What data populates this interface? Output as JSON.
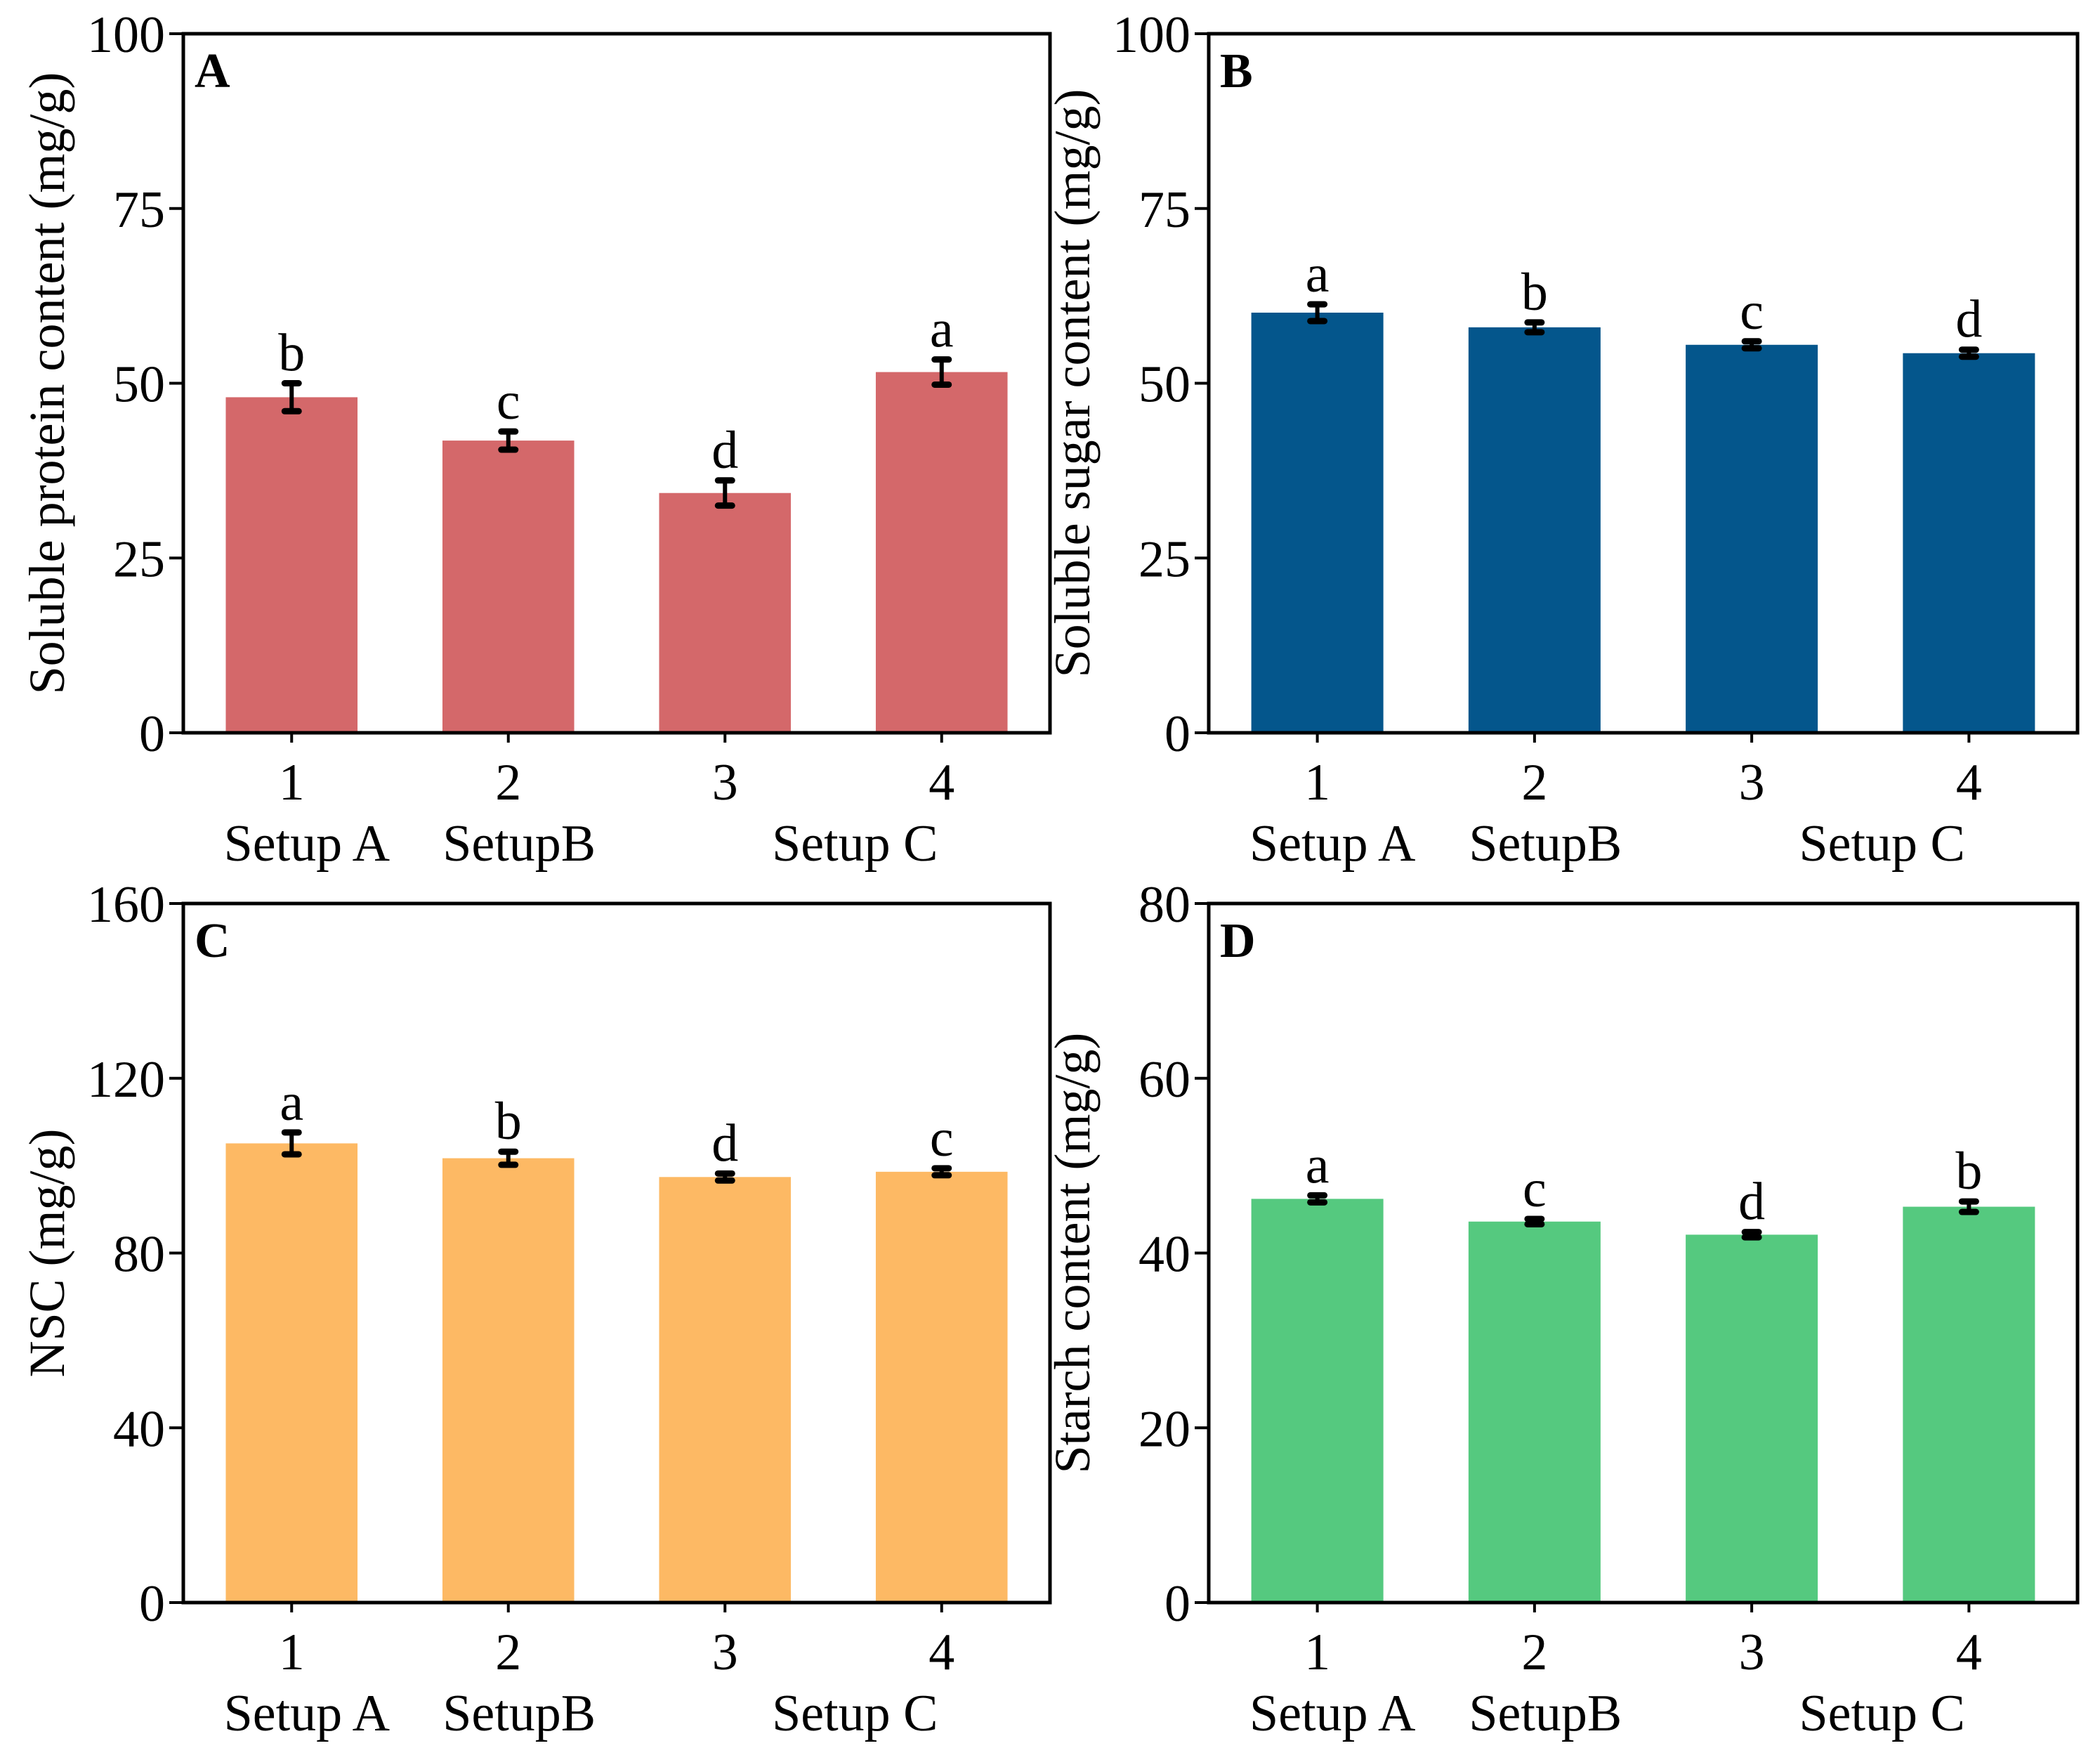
{
  "chart_data": [
    {
      "type": "bar",
      "panel_label": "A",
      "ylabel": "Soluble protein content (mg/g)",
      "xlabel": "",
      "categories": [
        "1",
        "2",
        "3",
        "4"
      ],
      "values": [
        48.0,
        41.8,
        34.3,
        51.6
      ],
      "errors": [
        2.0,
        1.3,
        1.8,
        1.8
      ],
      "significance": [
        "b",
        "c",
        "d",
        "a"
      ],
      "ylim": [
        0,
        100
      ],
      "yticks": [
        0,
        25,
        50,
        75,
        100
      ],
      "color": "#d4686a",
      "groups": [
        "Setup A",
        "SetupB",
        "Setup C"
      ]
    },
    {
      "type": "bar",
      "panel_label": "B",
      "ylabel": "Soluble sugar content (mg/g)",
      "xlabel": "",
      "categories": [
        "1",
        "2",
        "3",
        "4"
      ],
      "values": [
        60.1,
        58.0,
        55.5,
        54.3
      ],
      "errors": [
        1.2,
        0.7,
        0.5,
        0.5
      ],
      "significance": [
        "a",
        "b",
        "c",
        "d"
      ],
      "ylim": [
        0,
        100
      ],
      "yticks": [
        0,
        25,
        50,
        75,
        100
      ],
      "color": "#04568c",
      "groups": [
        "Setup A",
        "SetupB",
        "Setup C"
      ]
    },
    {
      "type": "bar",
      "panel_label": "C",
      "ylabel": "NSC (mg/g)",
      "xlabel": "",
      "categories": [
        "1",
        "2",
        "3",
        "4"
      ],
      "values": [
        105.1,
        101.7,
        97.4,
        98.6
      ],
      "errors": [
        2.5,
        1.5,
        0.8,
        0.8
      ],
      "significance": [
        "a",
        "b",
        "d",
        "c"
      ],
      "ylim": [
        0,
        160
      ],
      "yticks": [
        0,
        40,
        80,
        120,
        160
      ],
      "color": "#fdb964",
      "groups": [
        "Setup A",
        "SetupB",
        "Setup C"
      ]
    },
    {
      "type": "bar",
      "panel_label": "D",
      "ylabel": "Starch content (mg/g)",
      "xlabel": "",
      "categories": [
        "1",
        "2",
        "3",
        "4"
      ],
      "values": [
        46.2,
        43.6,
        42.1,
        45.3
      ],
      "errors": [
        0.4,
        0.3,
        0.3,
        0.6
      ],
      "significance": [
        "a",
        "c",
        "d",
        "b"
      ],
      "ylim": [
        0,
        80
      ],
      "yticks": [
        0,
        20,
        40,
        60,
        80
      ],
      "color": "#55c97f",
      "groups": [
        "Setup A",
        "SetupB",
        "Setup C"
      ]
    }
  ]
}
